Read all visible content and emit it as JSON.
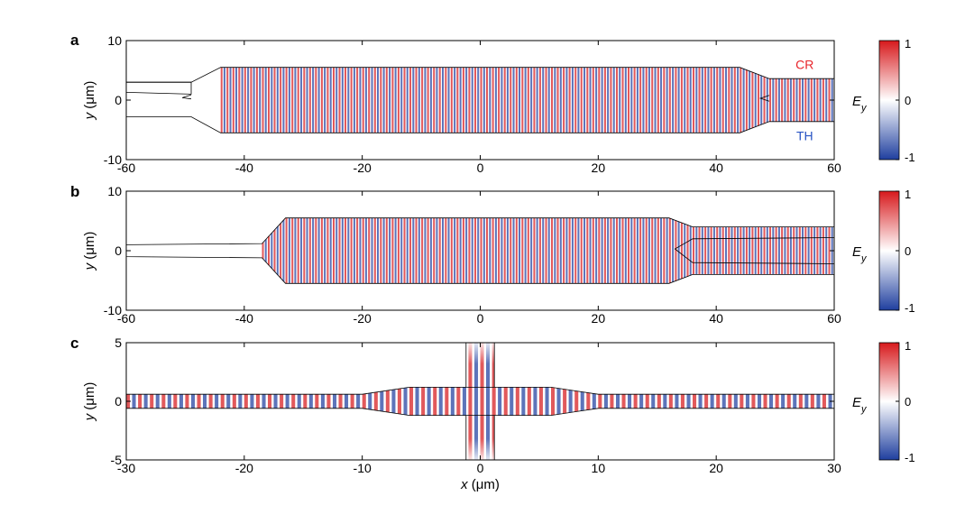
{
  "chart_data": [
    {
      "type": "heatmap",
      "panel_label": "a",
      "xlim": [
        -60,
        60
      ],
      "ylim": [
        -10,
        10
      ],
      "x_ticks": [
        -60,
        -40,
        -20,
        0,
        20,
        40,
        60
      ],
      "y_ticks": [
        -10,
        0,
        10
      ],
      "ylabel_var": "y",
      "ylabel_unit": " (μm)",
      "colorbar": {
        "label_var": "E",
        "label_sub": "y",
        "ticks": [
          1,
          0,
          -1
        ],
        "range": [
          -1,
          1
        ],
        "colors": [
          "#1f3f9f",
          "#ffffff",
          "#d7191c"
        ]
      },
      "annotations": [
        {
          "text": "CR",
          "x": 55,
          "y": 6,
          "color": "#e8242a"
        },
        {
          "text": "TH",
          "x": 55,
          "y": -6,
          "color": "#2a55c4"
        }
      ],
      "device_outline": {
        "outer": [
          [
            -60,
            3
          ],
          [
            -49,
            3
          ],
          [
            -44,
            5.5
          ],
          [
            44,
            5.5
          ],
          [
            49,
            3.6
          ],
          [
            60,
            3.6
          ],
          [
            60,
            -3.6
          ],
          [
            49,
            -3.6
          ],
          [
            44,
            -5.5
          ],
          [
            -44,
            -5.5
          ],
          [
            -49,
            -2.8
          ],
          [
            -60,
            -2.8
          ]
        ],
        "upper_port": [
          [
            -60,
            3
          ],
          [
            -49,
            3
          ],
          [
            -49,
            1
          ],
          [
            -60,
            1.3
          ]
        ],
        "gap_left": [
          [
            -49,
            0.9
          ],
          [
            -50.5,
            0.4
          ],
          [
            -49,
            0.2
          ]
        ],
        "gap_right": [
          [
            49,
            0.8
          ],
          [
            47.5,
            0.3
          ],
          [
            49,
            -0.2
          ]
        ]
      },
      "field_region": {
        "x_start": -44,
        "wavelength": 1.0
      }
    },
    {
      "type": "heatmap",
      "panel_label": "b",
      "xlim": [
        -60,
        60
      ],
      "ylim": [
        -10,
        10
      ],
      "x_ticks": [
        -60,
        -40,
        -20,
        0,
        20,
        40,
        60
      ],
      "y_ticks": [
        -10,
        0,
        10
      ],
      "ylabel_var": "y",
      "ylabel_unit": " (μm)",
      "colorbar": {
        "label_var": "E",
        "label_sub": "y",
        "ticks": [
          1,
          0,
          -1
        ],
        "range": [
          -1,
          1
        ],
        "colors": [
          "#1f3f9f",
          "#ffffff",
          "#d7191c"
        ]
      },
      "annotations": [],
      "device_outline": {
        "outer": [
          [
            -60,
            1
          ],
          [
            -37,
            1.2
          ],
          [
            -33,
            5.5
          ],
          [
            32,
            5.5
          ],
          [
            36,
            4
          ],
          [
            60,
            4
          ],
          [
            60,
            -4
          ],
          [
            36,
            -4
          ],
          [
            32,
            -5.5
          ],
          [
            -33,
            -5.5
          ],
          [
            -37,
            -1.2
          ],
          [
            -60,
            -1
          ]
        ],
        "notch": [
          [
            60,
            2.2
          ],
          [
            36,
            2
          ],
          [
            33,
            0.3
          ],
          [
            36,
            -2
          ],
          [
            60,
            -2.2
          ]
        ]
      },
      "field_region": {
        "x_start": -37,
        "wavelength": 1.0
      }
    },
    {
      "type": "heatmap",
      "panel_label": "c",
      "xlim": [
        -30,
        30
      ],
      "ylim": [
        -5,
        5
      ],
      "x_ticks": [
        -30,
        -20,
        -10,
        0,
        10,
        20,
        30
      ],
      "y_ticks": [
        -5,
        0,
        5
      ],
      "ylabel_var": "y",
      "ylabel_unit": " (μm)",
      "xlabel_var": "x",
      "xlabel_unit": " (μm)",
      "colorbar": {
        "label_var": "E",
        "label_sub": "y",
        "ticks": [
          1,
          0,
          -1
        ],
        "range": [
          -1,
          1
        ],
        "colors": [
          "#1f3f9f",
          "#ffffff",
          "#d7191c"
        ]
      },
      "annotations": [],
      "device_outline": {
        "waveguide_half_width": 0.6,
        "taper": [
          [
            -10,
            0.6
          ],
          [
            -6,
            1.2
          ],
          [
            6,
            1.2
          ],
          [
            10,
            0.6
          ]
        ],
        "crossing_x": [
          -1.2,
          1.2
        ]
      },
      "field_region": {
        "x_start": -30,
        "wavelength": 1.0
      }
    }
  ]
}
